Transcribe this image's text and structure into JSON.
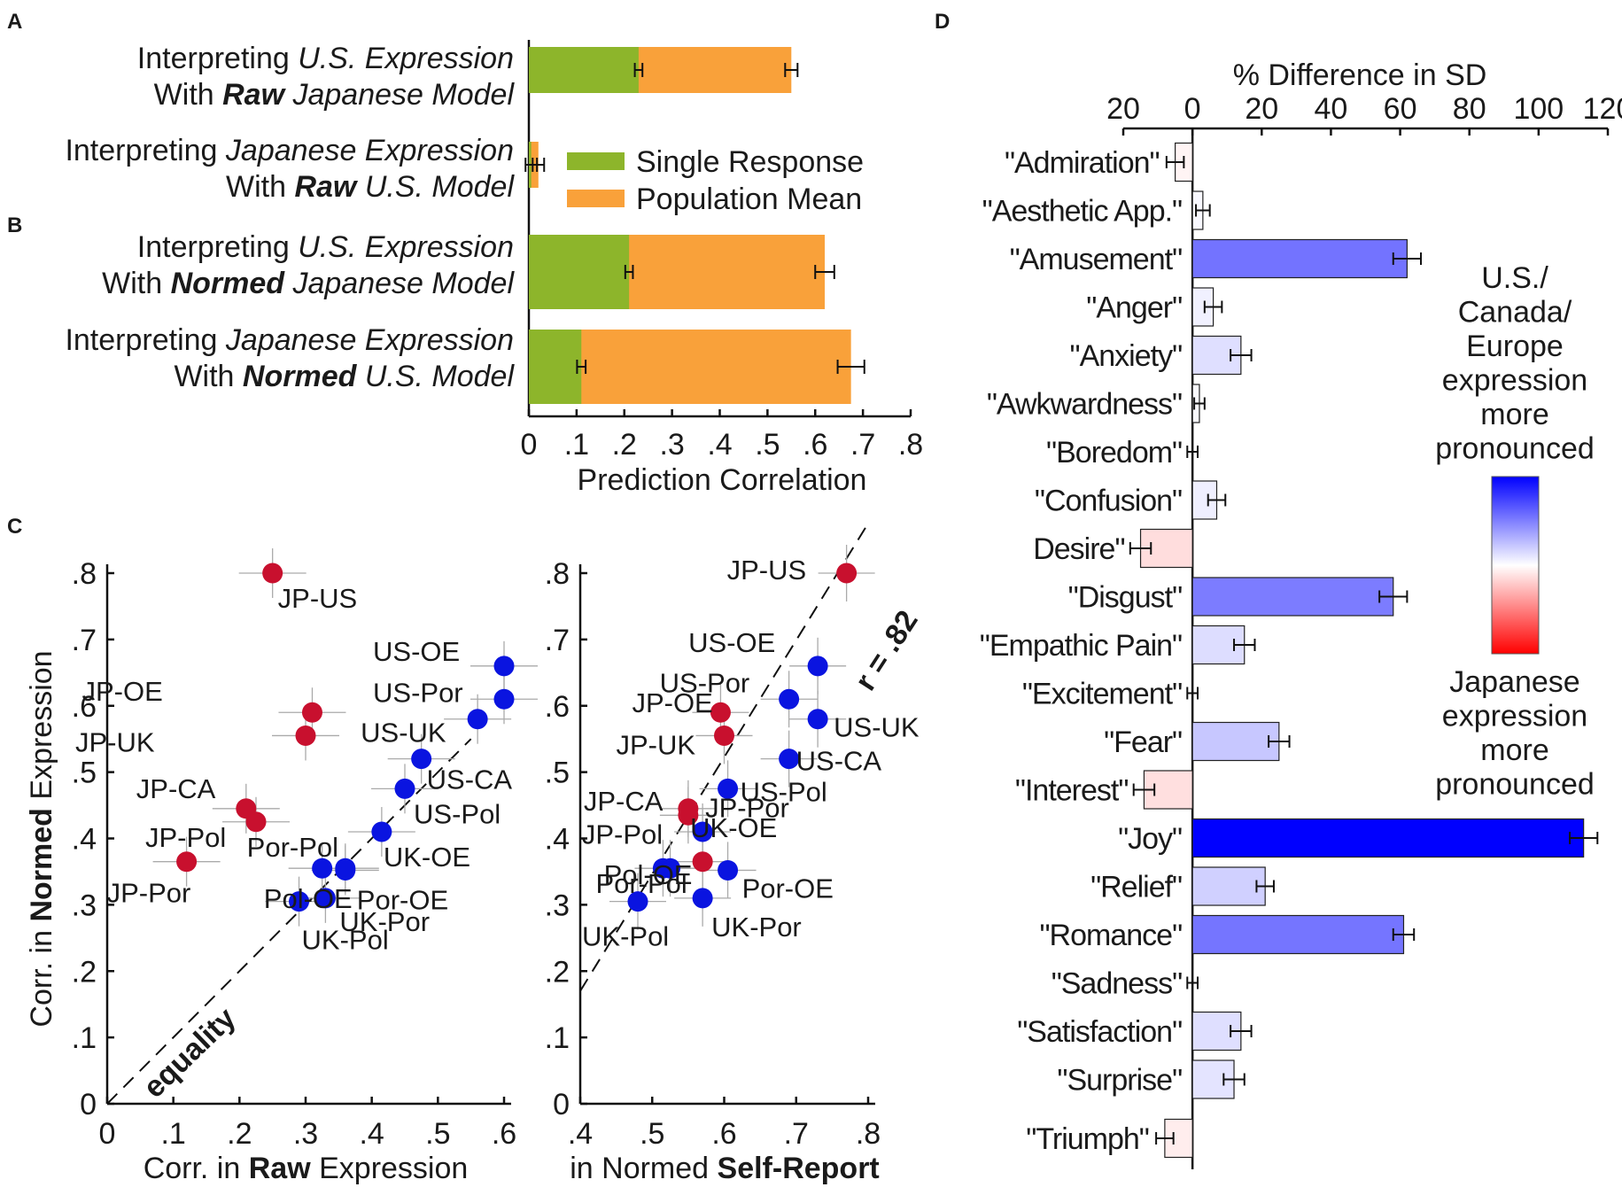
{
  "panels": {
    "a": "A",
    "b": "B",
    "c": "C",
    "d": "D"
  },
  "chart_data": [
    {
      "type": "bar",
      "panel": "A/B",
      "orientation": "horizontal",
      "stacked": true,
      "categories": [
        [
          "Interpreting ",
          "U.S. Expression",
          "With ",
          "Raw",
          " Japanese Model"
        ],
        [
          "Interpreting ",
          "Japanese Expression",
          "With ",
          "Raw",
          " U.S. Model"
        ],
        [
          "Interpreting ",
          "U.S. Expression",
          "With ",
          "Normed",
          " Japanese Model"
        ],
        [
          "Interpreting ",
          "Japanese Expression",
          "With ",
          "Normed",
          " U.S. Model"
        ]
      ],
      "series": [
        {
          "name": "Single Response",
          "color": "#8db52b",
          "values": [
            0.23,
            0.005,
            0.21,
            0.11
          ],
          "errors": [
            0.008,
            0.012,
            0.008,
            0.009
          ]
        },
        {
          "name": "Population Mean",
          "color": "#f9a13a",
          "values": [
            0.55,
            0.02,
            0.62,
            0.675
          ],
          "errors": [
            0.013,
            0.012,
            0.02,
            0.028
          ]
        }
      ],
      "xlabel": "Prediction Correlation",
      "xticks": [
        "0",
        ".1",
        ".2",
        ".3",
        ".4",
        ".5",
        ".6",
        ".7",
        ".8"
      ],
      "xlim": [
        0,
        0.8
      ]
    },
    {
      "type": "scatter",
      "panel": "C-left",
      "xlabel": [
        "Corr. in ",
        "Raw",
        " Expression"
      ],
      "ylabel": [
        "Corr. in ",
        "Normed",
        " Expression"
      ],
      "xlim": [
        0,
        0.6
      ],
      "ylim": [
        0,
        0.8
      ],
      "xticks": [
        "0",
        ".1",
        ".2",
        ".3",
        ".4",
        ".5",
        ".6"
      ],
      "yticks": [
        "0",
        ".1",
        ".2",
        ".3",
        ".4",
        ".5",
        ".6",
        ".7",
        ".8"
      ],
      "line_label": "equality",
      "points": [
        {
          "label": "JP-US",
          "x": 0.25,
          "y": 0.8,
          "group": "japan"
        },
        {
          "label": "JP-OE",
          "x": 0.31,
          "y": 0.59,
          "group": "japan"
        },
        {
          "label": "JP-UK",
          "x": 0.3,
          "y": 0.555,
          "group": "japan"
        },
        {
          "label": "JP-CA",
          "x": 0.21,
          "y": 0.445,
          "group": "japan"
        },
        {
          "label": "JP-Pol",
          "x": 0.225,
          "y": 0.425,
          "group": "japan"
        },
        {
          "label": "JP-Por",
          "x": 0.12,
          "y": 0.365,
          "group": "japan"
        },
        {
          "label": "US-OE",
          "x": 0.6,
          "y": 0.66,
          "group": "west"
        },
        {
          "label": "US-Por",
          "x": 0.6,
          "y": 0.61,
          "group": "west"
        },
        {
          "label": "US-UK",
          "x": 0.56,
          "y": 0.58,
          "group": "west"
        },
        {
          "label": "US-CA",
          "x": 0.475,
          "y": 0.52,
          "group": "west"
        },
        {
          "label": "US-Pol",
          "x": 0.45,
          "y": 0.475,
          "group": "west"
        },
        {
          "label": "UK-OE",
          "x": 0.415,
          "y": 0.41,
          "group": "west"
        },
        {
          "label": "Pol-OE",
          "x": 0.36,
          "y": 0.355,
          "group": "west"
        },
        {
          "label": "Por-Pol",
          "x": 0.325,
          "y": 0.355,
          "group": "west"
        },
        {
          "label": "Por-OE",
          "x": 0.36,
          "y": 0.352,
          "group": "west"
        },
        {
          "label": "UK-Por",
          "x": 0.33,
          "y": 0.31,
          "group": "west"
        },
        {
          "label": "UK-Pol",
          "x": 0.29,
          "y": 0.305,
          "group": "west"
        }
      ]
    },
    {
      "type": "scatter",
      "panel": "C-right",
      "xlabel": [
        "in Normed ",
        "Self-Report"
      ],
      "xlim": [
        0.4,
        0.8
      ],
      "ylim": [
        0,
        0.8
      ],
      "xticks": [
        ".4",
        ".5",
        ".6",
        ".7",
        ".8"
      ],
      "yticks": [
        "0",
        ".1",
        ".2",
        ".3",
        ".4",
        ".5",
        ".6",
        ".7",
        ".8"
      ],
      "fit_label": "r = .82",
      "points": [
        {
          "label": "JP-US",
          "x": 0.77,
          "y": 0.8,
          "group": "japan"
        },
        {
          "label": "JP-OE",
          "x": 0.595,
          "y": 0.59,
          "group": "japan"
        },
        {
          "label": "JP-UK",
          "x": 0.6,
          "y": 0.555,
          "group": "japan"
        },
        {
          "label": "JP-CA",
          "x": 0.55,
          "y": 0.445,
          "group": "japan"
        },
        {
          "label": "JP-Pol",
          "x": 0.55,
          "y": 0.435,
          "group": "japan"
        },
        {
          "label": "JP-Por",
          "x": 0.57,
          "y": 0.365,
          "group": "japan"
        },
        {
          "label": "US-OE",
          "x": 0.73,
          "y": 0.66,
          "group": "west"
        },
        {
          "label": "US-Por",
          "x": 0.69,
          "y": 0.61,
          "group": "west"
        },
        {
          "label": "US-UK",
          "x": 0.73,
          "y": 0.58,
          "group": "west"
        },
        {
          "label": "US-CA",
          "x": 0.69,
          "y": 0.52,
          "group": "west"
        },
        {
          "label": "US-Pol",
          "x": 0.605,
          "y": 0.475,
          "group": "west"
        },
        {
          "label": "UK-OE",
          "x": 0.57,
          "y": 0.41,
          "group": "west"
        },
        {
          "label": "Pol-OE",
          "x": 0.525,
          "y": 0.355,
          "group": "west"
        },
        {
          "label": "Por-Pol",
          "x": 0.515,
          "y": 0.355,
          "group": "west"
        },
        {
          "label": "Por-OE",
          "x": 0.605,
          "y": 0.352,
          "group": "west"
        },
        {
          "label": "UK-Por",
          "x": 0.57,
          "y": 0.31,
          "group": "west"
        },
        {
          "label": "UK-Pol",
          "x": 0.48,
          "y": 0.305,
          "group": "west"
        }
      ]
    },
    {
      "type": "bar",
      "panel": "D",
      "orientation": "horizontal",
      "title": "% Difference in SD",
      "xlim": [
        -20,
        120
      ],
      "xticks": [
        "20",
        "0",
        "20",
        "40",
        "60",
        "80",
        "100",
        "120"
      ],
      "categories": [
        "\"Admiration\"",
        "\"Aesthetic App.\"",
        "\"Amusement\"",
        "\"Anger\"",
        "\"Anxiety\"",
        "\"Awkwardness\"",
        "\"Boredom\"",
        "\"Confusion\"",
        "Desire\"",
        "\"Disgust\"",
        "\"Empathic Pain\"",
        "\"Excitement\"",
        "\"Fear\"",
        "\"Interest\"",
        "\"Joy\"",
        "\"Relief\"",
        "\"Romance\"",
        "\"Sadness\"",
        "\"Satisfaction\"",
        "\"Surprise\"",
        "\"Triumph\""
      ],
      "values": [
        -5,
        3,
        62,
        6,
        14,
        2,
        0,
        7,
        -15,
        58,
        15,
        0,
        25,
        -14,
        113,
        21,
        61,
        0,
        14,
        12,
        -8
      ],
      "errors": [
        2.5,
        2,
        4,
        2.5,
        3,
        1.5,
        1.5,
        2.5,
        3,
        4,
        3,
        1.5,
        3,
        3,
        4,
        2.5,
        3,
        1.5,
        3,
        3,
        2.5
      ],
      "legend_top": [
        "U.S./",
        "Canada/",
        "Europe",
        "expression",
        "more",
        "pronounced"
      ],
      "legend_bottom": [
        "Japanese",
        "expression",
        "more",
        "pronounced"
      ],
      "colors": {
        "positive": "#0000ff",
        "negative": "#ff0000",
        "neutral": "#ffffff"
      }
    }
  ],
  "colors": {
    "japan": "#c8102e",
    "west": "#0a14e0",
    "single": "#8db52b",
    "population": "#f9a13a"
  }
}
